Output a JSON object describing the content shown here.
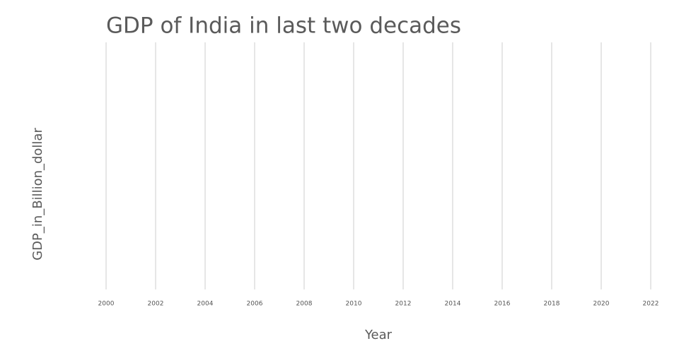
{
  "chart_data": {
    "type": "line",
    "title": "GDP of India in last two decades",
    "xlabel": "Year",
    "ylabel": "GDP_in_Billion_dollar",
    "xlim": [
      2000,
      2022
    ],
    "xticks": [
      2000,
      2002,
      2004,
      2006,
      2008,
      2010,
      2012,
      2014,
      2016,
      2018,
      2020,
      2022
    ],
    "grid": true
  }
}
